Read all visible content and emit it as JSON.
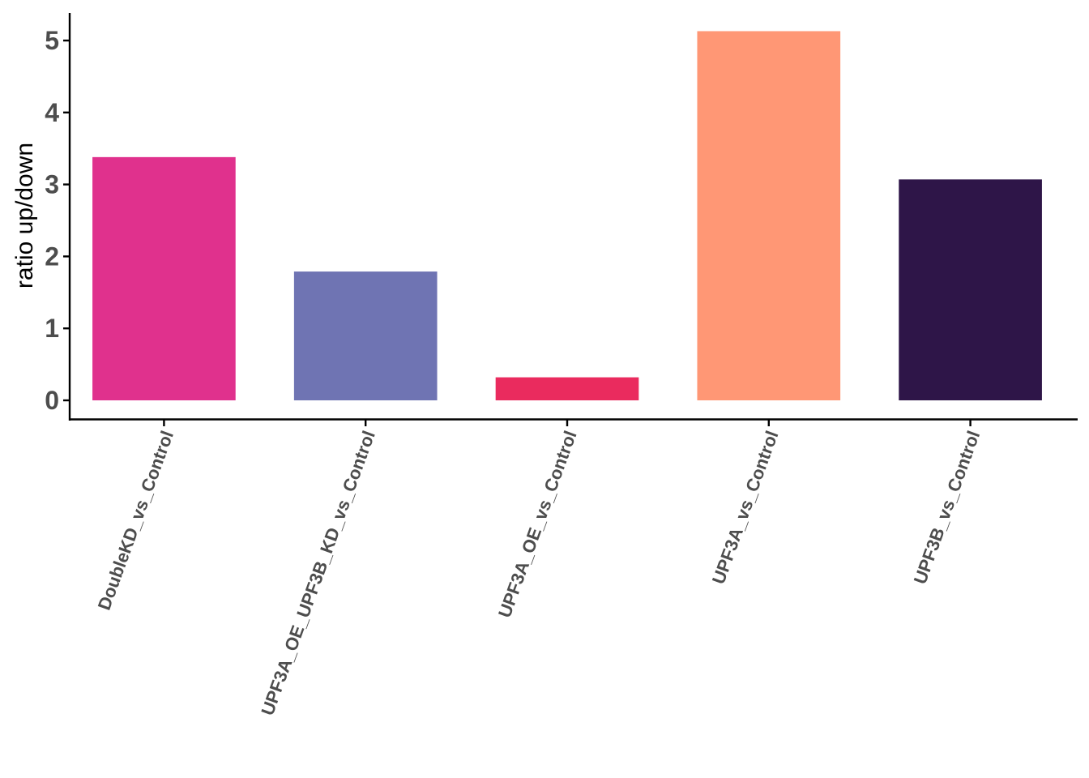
{
  "chart_data": {
    "type": "bar",
    "title": "",
    "xlabel": "",
    "ylabel": "ratio up/down",
    "categories": [
      "DoubleKD_vs_Control",
      "UPF3A_OE_UPF3B_KD_vs_Control",
      "UPF3A_OE_vs_Control",
      "UPF3A_vs_Control",
      "UPF3B_vs_Control"
    ],
    "values": [
      3.38,
      1.79,
      0.32,
      5.13,
      3.07
    ],
    "colors": [
      "#e0318d",
      "#6f74b3",
      "#ea2b5e",
      "#ff9775",
      "#2e1548"
    ],
    "ylim": [
      0,
      5.4
    ],
    "yticks": [
      0,
      1,
      2,
      3,
      4,
      5
    ],
    "grid": false,
    "legend": "none"
  }
}
